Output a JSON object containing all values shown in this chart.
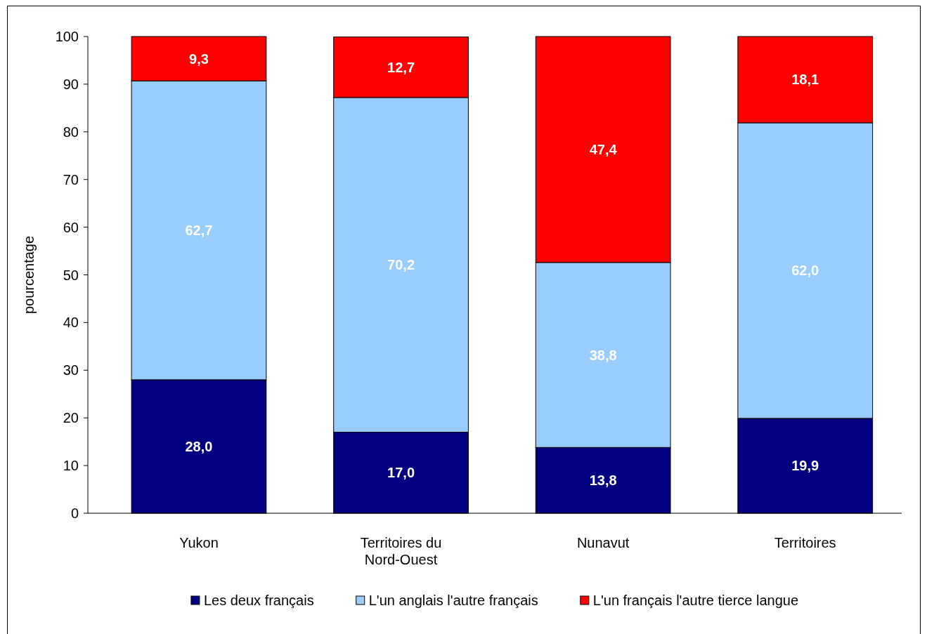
{
  "chart_data": {
    "type": "bar",
    "stacked": true,
    "ylabel": "pourcentage",
    "categories": [
      "Yukon",
      "Territoires du Nord-Ouest",
      "Nunavut",
      "Territoires"
    ],
    "series": [
      {
        "name": "Les deux français",
        "color": "#000080",
        "values": [
          28.0,
          17.0,
          13.8,
          19.9
        ],
        "value_labels": [
          "28,0",
          "17,0",
          "13,8",
          "19,9"
        ]
      },
      {
        "name": "L'un anglais l'autre français",
        "color": "#99ccff",
        "values": [
          62.7,
          70.2,
          38.8,
          62.0
        ],
        "value_labels": [
          "62,7",
          "70,2",
          "38,8",
          "62,0"
        ]
      },
      {
        "name": "L'un français l'autre tierce langue",
        "color": "#ff0000",
        "values": [
          9.3,
          12.7,
          47.4,
          18.1
        ],
        "value_labels": [
          "9,3",
          "12,7",
          "47,4",
          "18,1"
        ]
      }
    ],
    "ylim": [
      0,
      100
    ],
    "yticks": [
      0,
      10,
      20,
      30,
      40,
      50,
      60,
      70,
      80,
      90,
      100
    ],
    "legend": "bottom"
  }
}
